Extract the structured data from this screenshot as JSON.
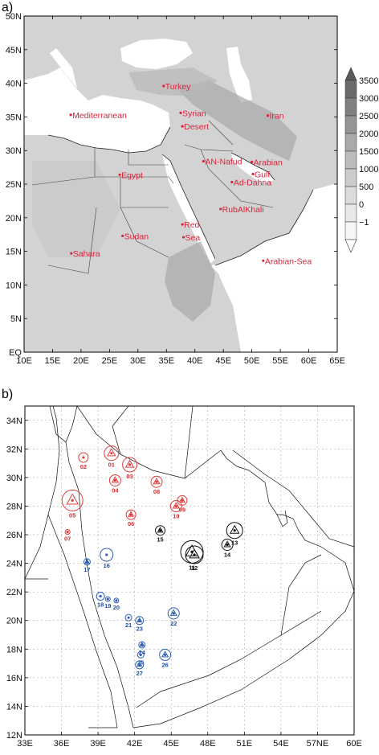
{
  "panel_a": {
    "label": "a)",
    "lat_ticks": [
      "EQ",
      "5N",
      "10N",
      "15N",
      "20N",
      "25N",
      "30N",
      "35N",
      "40N",
      "45N",
      "50N"
    ],
    "lon_ticks": [
      "10E",
      "15E",
      "20E",
      "25E",
      "30E",
      "35E",
      "40E",
      "45E",
      "50E",
      "55E",
      "60E",
      "65E"
    ],
    "places": [
      {
        "name": "Turkey",
        "lon": 34.5,
        "lat": 39.6
      },
      {
        "name": "Syrian",
        "lon": 37.5,
        "lat": 35.6
      },
      {
        "name": "Desert",
        "lon": 37.8,
        "lat": 33.6
      },
      {
        "name": "Iran",
        "lon": 52.8,
        "lat": 35.2
      },
      {
        "name": "Mediterranean",
        "lon": 18.2,
        "lat": 35.3
      },
      {
        "name": "Egypt",
        "lon": 26.8,
        "lat": 26.4
      },
      {
        "name": "AN-Nafud",
        "lon": 41.5,
        "lat": 28.4
      },
      {
        "name": "Arabian",
        "lon": 50.0,
        "lat": 28.3
      },
      {
        "name": "Gulf",
        "lon": 50.2,
        "lat": 26.5
      },
      {
        "name": "Ad-Dahna",
        "lon": 46.5,
        "lat": 25.3
      },
      {
        "name": "RubAlKhali",
        "lon": 44.5,
        "lat": 21.3
      },
      {
        "name": "Red",
        "lon": 37.8,
        "lat": 19.0
      },
      {
        "name": "Sea",
        "lon": 38.0,
        "lat": 17.1
      },
      {
        "name": "Sudan",
        "lon": 27.3,
        "lat": 17.3
      },
      {
        "name": "Sahara",
        "lon": 18.3,
        "lat": 14.7
      },
      {
        "name": "Arabian-Sea",
        "lon": 52.0,
        "lat": 13.6
      }
    ],
    "colorbar": {
      "labels": [
        "3500",
        "3000",
        "2500",
        "2000",
        "1500",
        "1000",
        "500",
        "0",
        "−1"
      ],
      "colors": [
        "#6a6a6a",
        "#808080",
        "#959595",
        "#a9a9a9",
        "#bcbcbc",
        "#cccccc",
        "#dbdbdb",
        "#e8e8e8",
        "#f6f6f6"
      ]
    }
  },
  "panel_b": {
    "label": "b)",
    "lat_ticks": [
      "12N",
      "14N",
      "16N",
      "18N",
      "20N",
      "22N",
      "24N",
      "26N",
      "28N",
      "30N",
      "32N",
      "34N"
    ],
    "lon_ticks": [
      "33E",
      "36E",
      "39E",
      "42E",
      "45E",
      "48E",
      "51E",
      "54E",
      "57NE",
      "60E"
    ],
    "colors": {
      "red": "#e03c3c",
      "blue": "#2f5fb0",
      "black": "#111111"
    },
    "stations": [
      {
        "id": "01",
        "lon": 40.1,
        "lat": 31.7,
        "color": "red",
        "r": 9,
        "tri": true
      },
      {
        "id": "02",
        "lon": 37.8,
        "lat": 31.4,
        "color": "red",
        "r": 6,
        "tri": false
      },
      {
        "id": "03",
        "lon": 41.6,
        "lat": 30.9,
        "color": "red",
        "r": 9,
        "tri": true
      },
      {
        "id": "04",
        "lon": 40.4,
        "lat": 29.8,
        "color": "red",
        "r": 7,
        "tri": true
      },
      {
        "id": "05",
        "lon": 36.9,
        "lat": 28.4,
        "color": "red",
        "r": 13,
        "tri": true
      },
      {
        "id": "06",
        "lon": 41.7,
        "lat": 27.4,
        "color": "red",
        "r": 6,
        "tri": true
      },
      {
        "id": "07",
        "lon": 36.5,
        "lat": 26.2,
        "color": "red",
        "r": 3,
        "tri": false
      },
      {
        "id": "08",
        "lon": 43.8,
        "lat": 29.7,
        "color": "red",
        "r": 7,
        "tri": true
      },
      {
        "id": "09",
        "lon": 45.9,
        "lat": 28.4,
        "color": "red",
        "r": 6,
        "tri": true
      },
      {
        "id": "10",
        "lon": 45.4,
        "lat": 28.0,
        "color": "red",
        "r": 7,
        "tri": true
      },
      {
        "id": "11",
        "lon": 46.7,
        "lat": 24.8,
        "color": "black",
        "r": 14,
        "tri": true
      },
      {
        "id": "12",
        "lon": 46.9,
        "lat": 24.6,
        "color": "black",
        "r": 11,
        "tri": true
      },
      {
        "id": "13",
        "lon": 50.2,
        "lat": 26.3,
        "color": "black",
        "r": 10,
        "tri": true
      },
      {
        "id": "14",
        "lon": 49.6,
        "lat": 25.3,
        "color": "black",
        "r": 7,
        "tri": true
      },
      {
        "id": "15",
        "lon": 44.1,
        "lat": 26.3,
        "color": "black",
        "r": 6,
        "tri": true
      },
      {
        "id": "16",
        "lon": 39.7,
        "lat": 24.6,
        "color": "blue",
        "r": 8,
        "tri": false
      },
      {
        "id": "17",
        "lon": 38.1,
        "lat": 24.1,
        "color": "blue",
        "r": 4,
        "tri": true
      },
      {
        "id": "18",
        "lon": 39.2,
        "lat": 21.7,
        "color": "blue",
        "r": 5,
        "tri": false
      },
      {
        "id": "19",
        "lon": 39.8,
        "lat": 21.5,
        "color": "blue",
        "r": 3,
        "tri": false
      },
      {
        "id": "20",
        "lon": 40.5,
        "lat": 21.4,
        "color": "blue",
        "r": 3,
        "tri": false
      },
      {
        "id": "21",
        "lon": 41.5,
        "lat": 20.2,
        "color": "blue",
        "r": 4,
        "tri": false
      },
      {
        "id": "22",
        "lon": 45.2,
        "lat": 20.5,
        "color": "blue",
        "r": 7,
        "tri": true
      },
      {
        "id": "23",
        "lon": 42.4,
        "lat": 20.0,
        "color": "blue",
        "r": 5,
        "tri": true
      },
      {
        "id": "24",
        "lon": 42.6,
        "lat": 18.3,
        "color": "blue",
        "r": 4,
        "tri": true
      },
      {
        "id": "25",
        "lon": 42.5,
        "lat": 17.6,
        "color": "blue",
        "r": 4,
        "tri": false
      },
      {
        "id": "26",
        "lon": 44.5,
        "lat": 17.6,
        "color": "blue",
        "r": 7,
        "tri": true
      },
      {
        "id": "27",
        "lon": 42.4,
        "lat": 16.9,
        "color": "blue",
        "r": 5,
        "tri": true
      }
    ]
  }
}
